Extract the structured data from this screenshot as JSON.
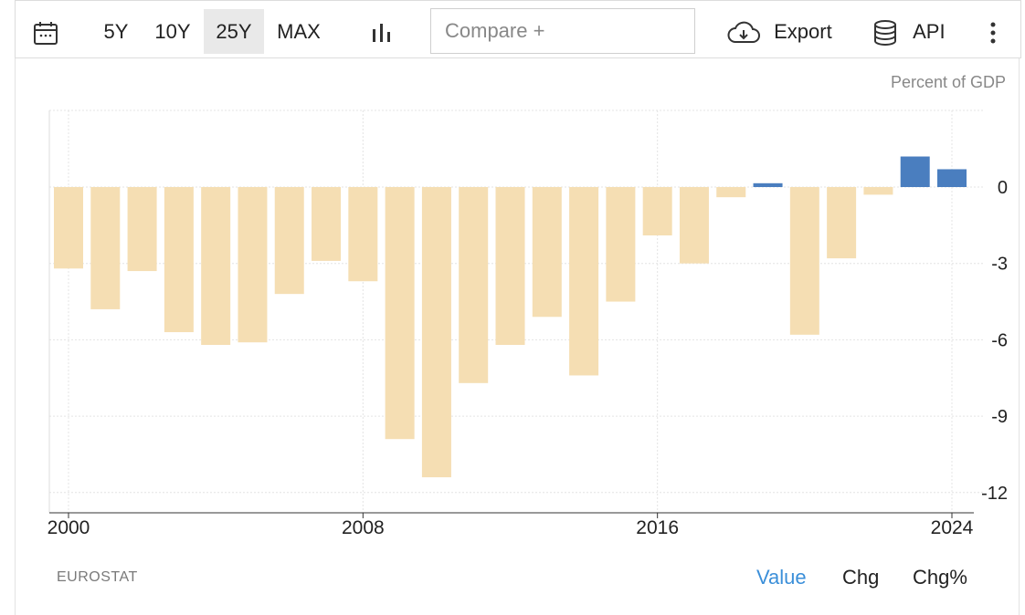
{
  "toolbar": {
    "ranges": [
      "5Y",
      "10Y",
      "25Y",
      "MAX"
    ],
    "active_range": "25Y",
    "compare_placeholder": "Compare +",
    "export_label": "Export",
    "api_label": "API",
    "icons": {
      "calendar": "calendar-icon",
      "chart_type": "bar-chart-icon",
      "export": "cloud-download-icon",
      "api": "database-icon",
      "more": "more-vertical-icon"
    }
  },
  "chart_data": {
    "type": "bar",
    "unit_label": "Percent of GDP",
    "x": [
      2000,
      2001,
      2002,
      2003,
      2004,
      2005,
      2006,
      2007,
      2008,
      2009,
      2010,
      2011,
      2012,
      2013,
      2014,
      2015,
      2016,
      2017,
      2018,
      2019,
      2020,
      2021,
      2022,
      2023,
      2024
    ],
    "values": [
      -3.2,
      -4.8,
      -3.3,
      -5.7,
      -6.2,
      -6.1,
      -4.2,
      -2.9,
      -3.7,
      -9.9,
      -11.4,
      -7.7,
      -6.2,
      -5.1,
      -7.4,
      -4.5,
      -1.9,
      -3.0,
      -0.4,
      0.15,
      -5.8,
      -2.8,
      -0.3,
      1.2,
      0.7
    ],
    "colors": {
      "negative": "#f5deb3",
      "positive": "#4a7ebf"
    },
    "xticks": [
      "2000",
      "2008",
      "2016",
      "2024"
    ],
    "yticks": [
      "0",
      "-3",
      "-6",
      "-9",
      "-12"
    ],
    "ylim": [
      -13,
      3
    ],
    "grid": true,
    "source": "EUROSTAT"
  },
  "view_modes": [
    "Value",
    "Chg",
    "Chg%"
  ],
  "active_view": "Value"
}
